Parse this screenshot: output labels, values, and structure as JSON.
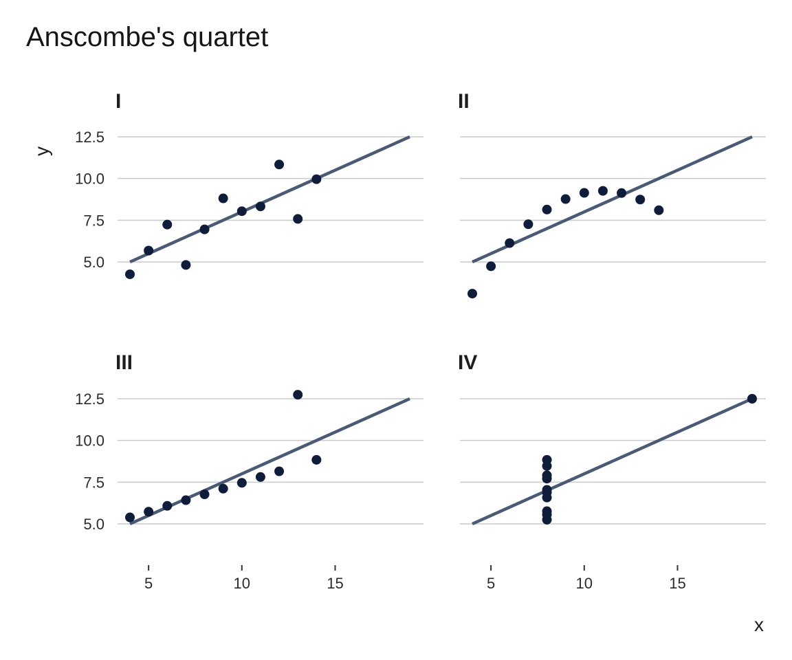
{
  "title": "Anscombe's quartet",
  "colors": {
    "point": "#0f1d3a",
    "fit_line": "#4a5a74",
    "grid": "#c8cacc"
  },
  "chart_data": {
    "type": "scatter",
    "title": "Anscombe's quartet",
    "xlabel": "x",
    "ylabel": "y",
    "xlim": [
      3.3,
      19.5
    ],
    "ylim": [
      2.5,
      13.5
    ],
    "xticks": [
      "5",
      "10",
      "15"
    ],
    "yticks": [
      "5.0",
      "7.5",
      "10.0",
      "12.5"
    ],
    "grid": "horizontal",
    "fit_line": {
      "x": [
        4,
        19
      ],
      "y": [
        5.0,
        12.5
      ]
    },
    "panels": [
      {
        "name": "I",
        "x": [
          10,
          8,
          13,
          9,
          11,
          14,
          6,
          4,
          12,
          7,
          5
        ],
        "y": [
          8.04,
          6.95,
          7.58,
          8.81,
          8.33,
          9.96,
          7.24,
          4.26,
          10.84,
          4.82,
          5.68
        ]
      },
      {
        "name": "II",
        "x": [
          10,
          8,
          13,
          9,
          11,
          14,
          6,
          4,
          12,
          7,
          5
        ],
        "y": [
          9.14,
          8.14,
          8.74,
          8.77,
          9.26,
          8.1,
          6.13,
          3.1,
          9.13,
          7.26,
          4.74
        ]
      },
      {
        "name": "III",
        "x": [
          10,
          8,
          13,
          9,
          11,
          14,
          6,
          4,
          12,
          7,
          5
        ],
        "y": [
          7.46,
          6.77,
          12.74,
          7.11,
          7.81,
          8.84,
          6.08,
          5.39,
          8.15,
          6.42,
          5.73
        ]
      },
      {
        "name": "IV",
        "x": [
          8,
          8,
          8,
          8,
          8,
          8,
          8,
          19,
          8,
          8,
          8
        ],
        "y": [
          6.58,
          5.76,
          7.71,
          8.84,
          8.47,
          7.04,
          5.25,
          12.5,
          5.56,
          7.91,
          6.89
        ]
      }
    ]
  }
}
